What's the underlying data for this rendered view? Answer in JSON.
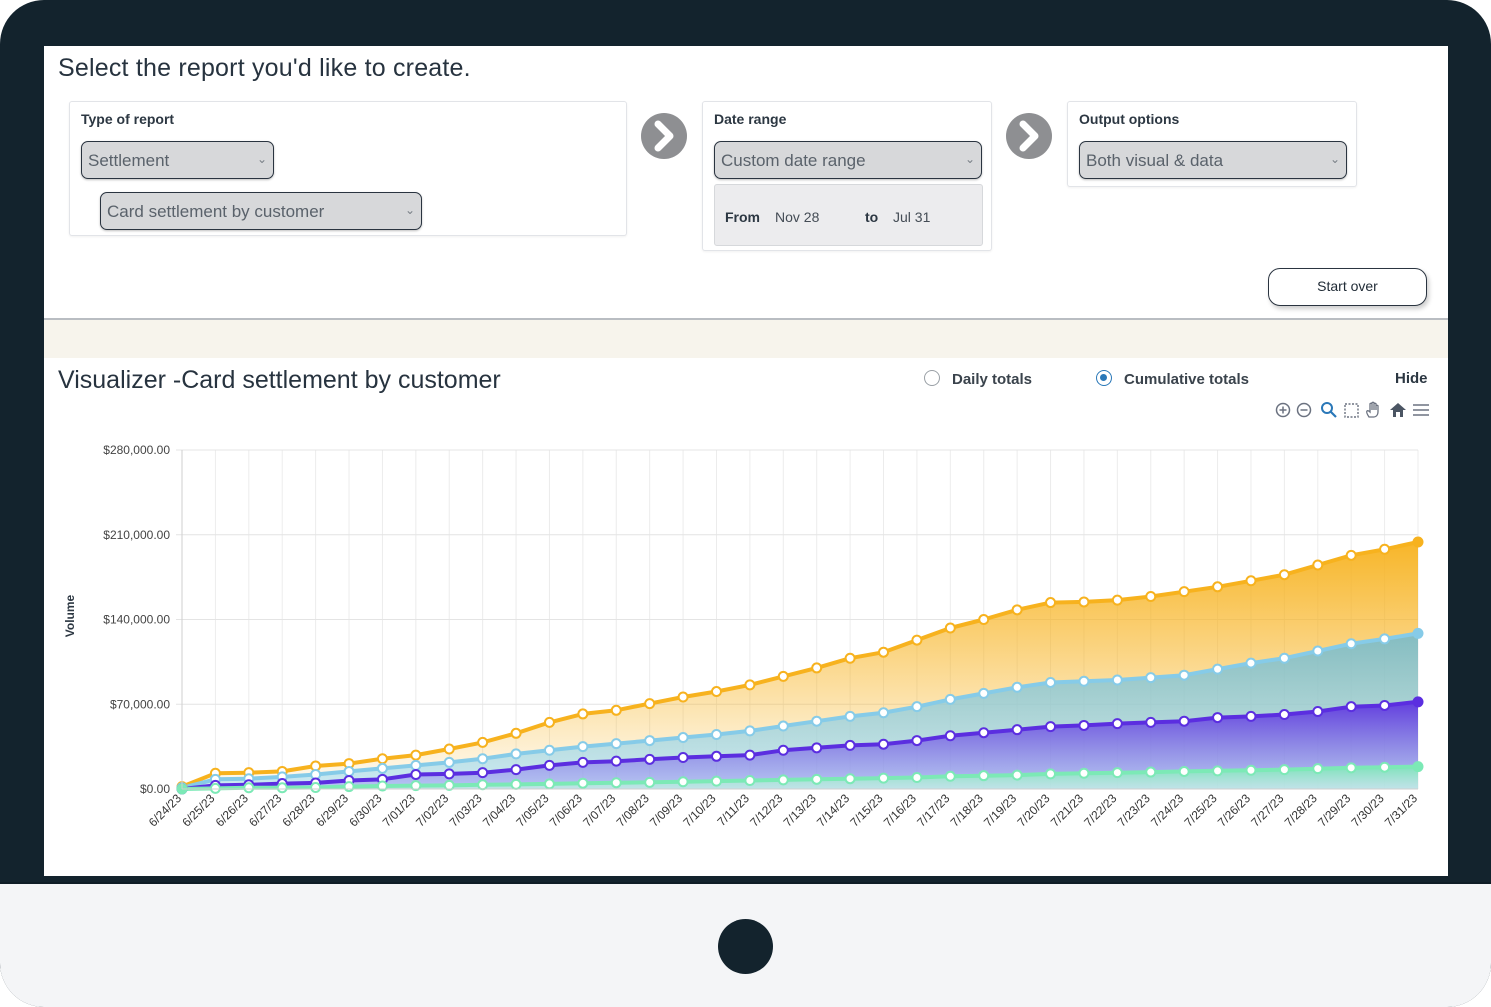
{
  "page": {
    "title": "Select the report you'd like to create."
  },
  "type_of_report": {
    "label": "Type of report",
    "category_value": "Settlement",
    "report_value": "Card settlement by customer"
  },
  "date_range": {
    "label": "Date range",
    "value": "Custom date range",
    "from_label": "From",
    "from_value": "Nov 28",
    "to_label": "to",
    "to_value": "Jul 31"
  },
  "output_options": {
    "label": "Output options",
    "value": "Both visual & data"
  },
  "start_over_label": "Start over",
  "visualizer": {
    "title": "Visualizer -Card settlement by customer",
    "daily_label": "Daily totals",
    "cumulative_label": "Cumulative totals",
    "selected_mode": "cumulative",
    "hide_label": "Hide",
    "toolbar_icons": [
      "zoom-in-icon",
      "zoom-out-icon",
      "magnifier-icon",
      "selection-icon",
      "pan-hand-icon",
      "home-icon",
      "menu-icon"
    ]
  },
  "chart_data": {
    "type": "area",
    "ylabel": "Volume",
    "xlabel": "",
    "ylim": [
      0,
      280000
    ],
    "yticks": [
      "$0.00",
      "$70,000.00",
      "$140,000.00",
      "$210,000.00",
      "$280,000.00"
    ],
    "grid": true,
    "categories": [
      "6/24/23",
      "6/25/23",
      "6/26/23",
      "6/27/23",
      "6/28/23",
      "6/29/23",
      "6/30/23",
      "7/01/23",
      "7/02/23",
      "7/03/23",
      "7/04/23",
      "7/05/23",
      "7/06/23",
      "7/07/23",
      "7/08/23",
      "7/09/23",
      "7/10/23",
      "7/11/23",
      "7/12/23",
      "7/13/23",
      "7/14/23",
      "7/15/23",
      "7/16/23",
      "7/17/23",
      "7/18/23",
      "7/19/23",
      "7/20/23",
      "7/21/23",
      "7/22/23",
      "7/23/23",
      "7/24/23",
      "7/25/23",
      "7/26/23",
      "7/27/23",
      "7/28/23",
      "7/29/23",
      "7/30/23",
      "7/31/23"
    ],
    "colors": {
      "series1": "#f7b21e",
      "series2": "#86cbe8",
      "series3": "#5b2ee0",
      "series4": "#7ce9b6"
    },
    "series": [
      {
        "values": [
          2000,
          13000,
          13500,
          14500,
          19000,
          21000,
          25000,
          28000,
          33000,
          38500,
          46000,
          55000,
          62000,
          65000,
          70500,
          76000,
          80500,
          86000,
          93000,
          100000,
          108000,
          113000,
          123000,
          133000,
          140000,
          148000,
          154000,
          154500,
          156000,
          159000,
          163000,
          167000,
          172000,
          177000,
          185000,
          193000,
          198000,
          204000
        ]
      },
      {
        "values": [
          1000,
          8000,
          8500,
          10000,
          12000,
          14500,
          17000,
          19500,
          22000,
          25000,
          29000,
          32000,
          35000,
          37500,
          40000,
          42500,
          45000,
          48000,
          52000,
          56000,
          60000,
          63000,
          68000,
          74000,
          79000,
          84000,
          88000,
          89000,
          90000,
          92000,
          94000,
          99000,
          104000,
          108000,
          114000,
          120000,
          124000,
          128500
        ]
      },
      {
        "values": [
          0,
          3000,
          3500,
          4500,
          5000,
          7000,
          8000,
          12000,
          12500,
          13500,
          16000,
          19500,
          22000,
          23000,
          24500,
          26000,
          27000,
          28000,
          32000,
          34000,
          36000,
          37000,
          40000,
          44000,
          46500,
          49000,
          51500,
          52500,
          54000,
          55000,
          56000,
          59000,
          60000,
          61500,
          64000,
          68000,
          69000,
          72000
        ]
      },
      {
        "values": [
          0,
          500,
          1000,
          1000,
          1200,
          2000,
          2500,
          2800,
          3000,
          3500,
          3800,
          4200,
          4800,
          5200,
          5500,
          6000,
          6500,
          7000,
          7500,
          8000,
          8500,
          9000,
          9500,
          10500,
          11000,
          11500,
          12500,
          13000,
          13500,
          14000,
          14500,
          15000,
          15500,
          16000,
          16800,
          17500,
          18000,
          18500
        ]
      }
    ]
  }
}
